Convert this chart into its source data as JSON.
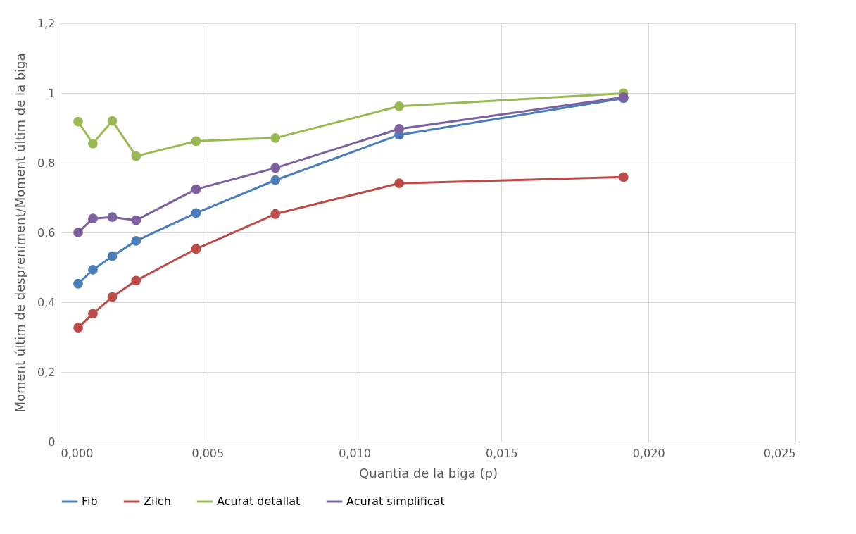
{
  "chart_data": {
    "type": "line",
    "xlabel": "Quantia de la biga (ρ)",
    "ylabel": "Moment últim de despreniment/Moment últim de la biga",
    "x": [
      0.0006,
      0.0011,
      0.00176,
      0.00257,
      0.00461,
      0.00731,
      0.01152,
      0.01915
    ],
    "series": [
      {
        "name": "Fib",
        "color": "#4a7ebb",
        "values": [
          0.453,
          0.493,
          0.532,
          0.576,
          0.656,
          0.75,
          0.88,
          0.985
        ]
      },
      {
        "name": "Zilch",
        "color": "#be4b48",
        "values": [
          0.327,
          0.367,
          0.415,
          0.462,
          0.553,
          0.653,
          0.741,
          0.759
        ]
      },
      {
        "name": "Acurat detallat",
        "color": "#98b954",
        "values": [
          0.918,
          0.855,
          0.92,
          0.819,
          0.862,
          0.871,
          0.962,
          0.999
        ]
      },
      {
        "name": "Acurat simplificat",
        "color": "#7d60a0",
        "values": [
          0.6,
          0.64,
          0.644,
          0.635,
          0.724,
          0.785,
          0.897,
          0.988
        ]
      }
    ],
    "xlim": [
      0,
      0.025
    ],
    "xticks": [
      {
        "value": 0,
        "label": "0,000"
      },
      {
        "value": 0.005,
        "label": "0,005"
      },
      {
        "value": 0.01,
        "label": "0,010"
      },
      {
        "value": 0.015,
        "label": "0,015"
      },
      {
        "value": 0.02,
        "label": "0,020"
      },
      {
        "value": 0.025,
        "label": "0,025"
      }
    ],
    "ylim": [
      0,
      1.2
    ],
    "yticks": [
      0,
      {
        "value": 0.2,
        "label": "0,2"
      },
      {
        "value": 0.4,
        "label": "0,4"
      },
      {
        "value": 0.6,
        "label": "0,6"
      },
      {
        "value": 0.8,
        "label": "0,8"
      },
      1,
      {
        "value": 1.2,
        "label": "1,2"
      }
    ],
    "grid": true,
    "legend": "bottom",
    "marker": "circle",
    "line_style": "solid"
  }
}
